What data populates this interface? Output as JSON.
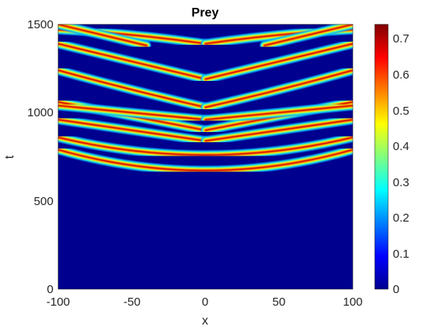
{
  "chart_data": {
    "type": "heatmap",
    "title": "Prey",
    "xlabel": "x",
    "ylabel": "t",
    "xlim": [
      -100,
      100
    ],
    "ylim": [
      0,
      1500
    ],
    "xticks": [
      "-100",
      "-50",
      "0",
      "50",
      "100"
    ],
    "yticks": [
      "0",
      "500",
      "1000",
      "1500"
    ],
    "colorbar": {
      "range": [
        0,
        0.74
      ],
      "ticks": [
        "0",
        "0.1",
        "0.2",
        "0.3",
        "0.4",
        "0.5",
        "0.6",
        "0.7"
      ],
      "colormap": "jet"
    },
    "grid": false
  }
}
